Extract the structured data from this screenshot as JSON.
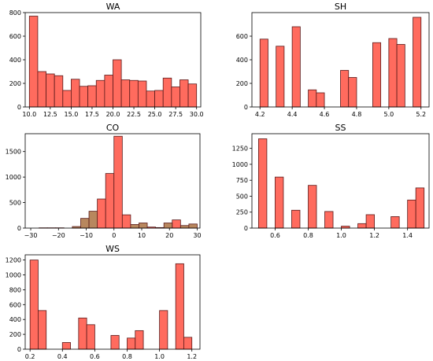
{
  "chart_data": [
    {
      "type": "bar",
      "title": "WA",
      "xlabel": "",
      "ylabel": "",
      "xlim": [
        9.5,
        30.5
      ],
      "ylim": [
        0,
        800
      ],
      "x_ticks": [
        10.0,
        12.5,
        15.0,
        17.5,
        20.0,
        22.5,
        25.0,
        27.5,
        30.0
      ],
      "x_tick_labels": [
        "10.0",
        "12.5",
        "15.0",
        "17.5",
        "20.0",
        "22.5",
        "25.0",
        "27.5",
        "30.0"
      ],
      "y_ticks": [
        0,
        200,
        400,
        600,
        800
      ],
      "y_tick_labels": [
        "0",
        "200",
        "400",
        "600",
        "800"
      ],
      "bin_edges": [
        10,
        11,
        12,
        13,
        14,
        15,
        16,
        17,
        18,
        19,
        20,
        21,
        22,
        23,
        24,
        25,
        26,
        27,
        28,
        29,
        30
      ],
      "series": [
        {
          "color": "#ff6b5e",
          "values": [
            770,
            300,
            280,
            265,
            140,
            235,
            175,
            180,
            225,
            270,
            400,
            230,
            225,
            220,
            135,
            140,
            245,
            170,
            230,
            195
          ]
        },
        {
          "color": "#b8875e",
          "values": [
            0,
            0,
            0,
            0,
            0,
            0,
            0,
            0,
            0,
            0,
            0,
            0,
            0,
            0,
            0,
            0,
            0,
            0,
            0,
            0
          ]
        }
      ]
    },
    {
      "type": "bar",
      "title": "SH",
      "xlabel": "",
      "ylabel": "",
      "xlim": [
        4.15,
        5.25
      ],
      "ylim": [
        0,
        800
      ],
      "x_ticks": [
        4.2,
        4.4,
        4.6,
        4.8,
        5.0,
        5.2
      ],
      "x_tick_labels": [
        "4.2",
        "4.4",
        "4.6",
        "4.8",
        "5.0",
        "5.2"
      ],
      "y_ticks": [
        0,
        200,
        400,
        600
      ],
      "y_tick_labels": [
        "0",
        "200",
        "400",
        "600"
      ],
      "bin_edges": [
        4.2,
        4.25,
        4.3,
        4.35,
        4.4,
        4.45,
        4.5,
        4.55,
        4.6,
        4.65,
        4.7,
        4.75,
        4.8,
        4.85,
        4.9,
        4.95,
        5.0,
        5.05,
        5.1,
        5.15,
        5.2
      ],
      "series": [
        {
          "color": "#ff6b5e",
          "values": [
            575,
            0,
            515,
            0,
            680,
            0,
            145,
            120,
            0,
            0,
            310,
            250,
            0,
            0,
            545,
            0,
            580,
            530,
            0,
            760
          ]
        }
      ]
    },
    {
      "type": "bar",
      "title": "CO",
      "xlabel": "",
      "ylabel": "",
      "xlim": [
        -32,
        31
      ],
      "ylim": [
        0,
        1850
      ],
      "x_ticks": [
        -30,
        -20,
        -10,
        0,
        10,
        20,
        30
      ],
      "x_tick_labels": [
        "−30",
        "−20",
        "−10",
        "0",
        "10",
        "20",
        "30"
      ],
      "y_ticks": [
        0,
        500,
        1000,
        1500
      ],
      "y_tick_labels": [
        "0",
        "500",
        "1000",
        "1500"
      ],
      "bin_edges": [
        -30,
        -27,
        -24,
        -21,
        -18,
        -15,
        -12,
        -9,
        -6,
        -3,
        0,
        3,
        6,
        9,
        12,
        15,
        18,
        21,
        24,
        27,
        30
      ],
      "series": [
        {
          "color": "#ff6b5e",
          "values": [
            0,
            0,
            5,
            5,
            0,
            10,
            0,
            0,
            570,
            1070,
            1800,
            260,
            0,
            0,
            20,
            0,
            0,
            160,
            0,
            0
          ]
        },
        {
          "color": "#b8875e",
          "values": [
            0,
            5,
            0,
            0,
            0,
            30,
            190,
            330,
            0,
            0,
            0,
            0,
            70,
            100,
            0,
            10,
            100,
            0,
            50,
            80
          ]
        }
      ]
    },
    {
      "type": "bar",
      "title": "SS",
      "xlabel": "",
      "ylabel": "",
      "xlim": [
        0.46,
        1.53
      ],
      "ylim": [
        0,
        1480
      ],
      "x_ticks": [
        0.6,
        0.8,
        1.0,
        1.2,
        1.4
      ],
      "x_tick_labels": [
        "0.6",
        "0.8",
        "1.0",
        "1.2",
        "1.4"
      ],
      "y_ticks": [
        0,
        250,
        500,
        750,
        1000,
        1250
      ],
      "y_tick_labels": [
        "0",
        "250",
        "500",
        "750",
        "1000",
        "1250"
      ],
      "bin_edges": [
        0.5,
        0.55,
        0.6,
        0.65,
        0.7,
        0.75,
        0.8,
        0.85,
        0.9,
        0.95,
        1.0,
        1.05,
        1.1,
        1.15,
        1.2,
        1.25,
        1.3,
        1.35,
        1.4,
        1.45,
        1.5
      ],
      "series": [
        {
          "color": "#ff6b5e",
          "values": [
            1400,
            0,
            800,
            0,
            280,
            0,
            670,
            0,
            260,
            0,
            30,
            0,
            70,
            210,
            0,
            0,
            180,
            0,
            440,
            630
          ]
        }
      ]
    },
    {
      "type": "bar",
      "title": "WS",
      "xlabel": "",
      "ylabel": "",
      "xlim": [
        0.17,
        1.25
      ],
      "ylim": [
        0,
        1270
      ],
      "x_ticks": [
        0.2,
        0.4,
        0.6,
        0.8,
        1.0,
        1.2
      ],
      "x_tick_labels": [
        "0.2",
        "0.4",
        "0.6",
        "0.8",
        "1.0",
        "1.2"
      ],
      "y_ticks": [
        0,
        200,
        400,
        600,
        800,
        1000,
        1200
      ],
      "y_tick_labels": [
        "0",
        "200",
        "400",
        "600",
        "800",
        "1000",
        "1200"
      ],
      "bin_edges": [
        0.2,
        0.25,
        0.3,
        0.35,
        0.4,
        0.45,
        0.5,
        0.55,
        0.6,
        0.65,
        0.7,
        0.75,
        0.8,
        0.85,
        0.9,
        0.95,
        1.0,
        1.05,
        1.1,
        1.15,
        1.2
      ],
      "series": [
        {
          "color": "#ff6b5e",
          "values": [
            1200,
            520,
            0,
            0,
            90,
            0,
            420,
            330,
            0,
            0,
            185,
            0,
            150,
            250,
            0,
            0,
            520,
            0,
            1150,
            160
          ]
        }
      ]
    }
  ]
}
